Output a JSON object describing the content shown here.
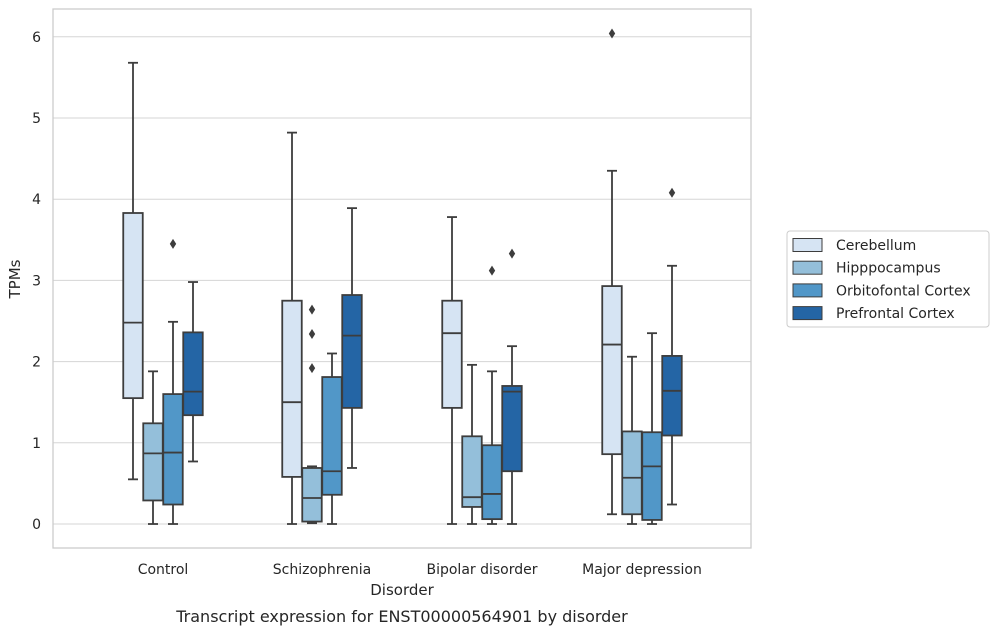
{
  "chart_data": {
    "type": "boxplot",
    "caption": "Transcript expression for ENST00000564901 by disorder",
    "xlabel": "Disorder",
    "ylabel": "TPMs",
    "ylim": [
      -0.28,
      6.35
    ],
    "yticks": [
      0,
      1,
      2,
      3,
      4,
      5,
      6
    ],
    "grid": "horizontal",
    "legend_position": "right",
    "colors": {
      "Cerebellum": "#d6e4f3",
      "Hipppocampus": "#94bfda",
      "Orbitofontal Cortex": "#5197c8",
      "Prefrontal Cortex": "#2465a5",
      "frame": "#cccccc",
      "grid": "#d5d5d5",
      "box_line": "#3d3d3d"
    },
    "categories": [
      "Control",
      "Schizophrenia",
      "Bipolar disorder",
      "Major depression"
    ],
    "series": [
      {
        "name": "Cerebellum",
        "boxes": [
          {
            "whislo": 0.55,
            "q1": 1.55,
            "med": 2.48,
            "q3": 3.83,
            "whishi": 5.68,
            "fliers": []
          },
          {
            "whislo": 0.0,
            "q1": 0.58,
            "med": 1.5,
            "q3": 2.75,
            "whishi": 4.82,
            "fliers": []
          },
          {
            "whislo": 0.0,
            "q1": 1.43,
            "med": 2.35,
            "q3": 2.75,
            "whishi": 3.78,
            "fliers": []
          },
          {
            "whislo": 0.12,
            "q1": 0.86,
            "med": 2.21,
            "q3": 2.93,
            "whishi": 4.35,
            "fliers": [
              6.04
            ]
          }
        ]
      },
      {
        "name": "Hipppocampus",
        "boxes": [
          {
            "whislo": 0.0,
            "q1": 0.29,
            "med": 0.87,
            "q3": 1.24,
            "whishi": 1.88,
            "fliers": []
          },
          {
            "whislo": 0.01,
            "q1": 0.03,
            "med": 0.32,
            "q3": 0.69,
            "whishi": 0.71,
            "fliers": [
              1.92,
              2.34,
              2.64
            ]
          },
          {
            "whislo": 0.0,
            "q1": 0.21,
            "med": 0.33,
            "q3": 1.08,
            "whishi": 1.96,
            "fliers": []
          },
          {
            "whislo": 0.0,
            "q1": 0.12,
            "med": 0.57,
            "q3": 1.14,
            "whishi": 2.06,
            "fliers": []
          }
        ]
      },
      {
        "name": "Orbitofontal Cortex",
        "boxes": [
          {
            "whislo": 0.0,
            "q1": 0.24,
            "med": 0.88,
            "q3": 1.6,
            "whishi": 2.49,
            "fliers": [
              3.45
            ]
          },
          {
            "whislo": 0.0,
            "q1": 0.36,
            "med": 0.65,
            "q3": 1.81,
            "whishi": 2.1,
            "fliers": []
          },
          {
            "whislo": 0.0,
            "q1": 0.06,
            "med": 0.37,
            "q3": 0.97,
            "whishi": 1.88,
            "fliers": [
              3.12
            ]
          },
          {
            "whislo": 0.0,
            "q1": 0.05,
            "med": 0.71,
            "q3": 1.13,
            "whishi": 2.35,
            "fliers": []
          }
        ]
      },
      {
        "name": "Prefrontal Cortex",
        "boxes": [
          {
            "whislo": 0.77,
            "q1": 1.34,
            "med": 1.63,
            "q3": 2.36,
            "whishi": 2.98,
            "fliers": []
          },
          {
            "whislo": 0.69,
            "q1": 1.43,
            "med": 2.32,
            "q3": 2.82,
            "whishi": 3.89,
            "fliers": []
          },
          {
            "whislo": 0.0,
            "q1": 0.65,
            "med": 1.63,
            "q3": 1.7,
            "whishi": 2.19,
            "fliers": [
              3.33
            ]
          },
          {
            "whislo": 0.24,
            "q1": 1.09,
            "med": 1.64,
            "q3": 2.07,
            "whishi": 3.18,
            "fliers": [
              4.08
            ]
          }
        ]
      }
    ]
  }
}
